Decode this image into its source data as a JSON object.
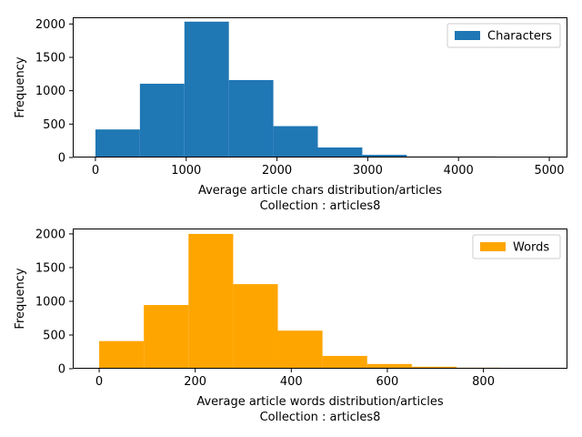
{
  "chart_data": [
    {
      "type": "bar",
      "subtype": "histogram",
      "xlabel": "Average article chars distribution/articles",
      "subtitle": "Collection : articles8",
      "ylabel": "Frequency",
      "xlim": [
        -250,
        5200
      ],
      "ylim": [
        0,
        2100
      ],
      "xticks": [
        0,
        1000,
        2000,
        3000,
        4000,
        5000
      ],
      "yticks": [
        0,
        500,
        1000,
        1500,
        2000
      ],
      "bin_edges": [
        0,
        490,
        980,
        1470,
        1960,
        2450,
        2940,
        3430,
        3920,
        4410,
        4900
      ],
      "values": [
        420,
        1105,
        2035,
        1160,
        470,
        150,
        40,
        15,
        15,
        5
      ],
      "color": "#1f77b4",
      "legend": {
        "label": "Characters",
        "position": "top-right"
      }
    },
    {
      "type": "bar",
      "subtype": "histogram",
      "xlabel": "Average article words distribution/articles",
      "subtitle": "Collection : articles8",
      "ylabel": "Frequency",
      "xlim": [
        -55,
        975
      ],
      "ylim": [
        0,
        2080
      ],
      "xticks": [
        0,
        200,
        400,
        600,
        800
      ],
      "yticks": [
        0,
        500,
        1000,
        1500,
        2000
      ],
      "bin_edges": [
        0,
        93,
        186,
        279,
        372,
        465,
        558,
        651,
        744,
        837,
        930
      ],
      "values": [
        410,
        945,
        2000,
        1255,
        565,
        190,
        70,
        30,
        15,
        5
      ],
      "color": "#ffa500",
      "legend": {
        "label": "Words",
        "position": "top-right"
      }
    }
  ]
}
